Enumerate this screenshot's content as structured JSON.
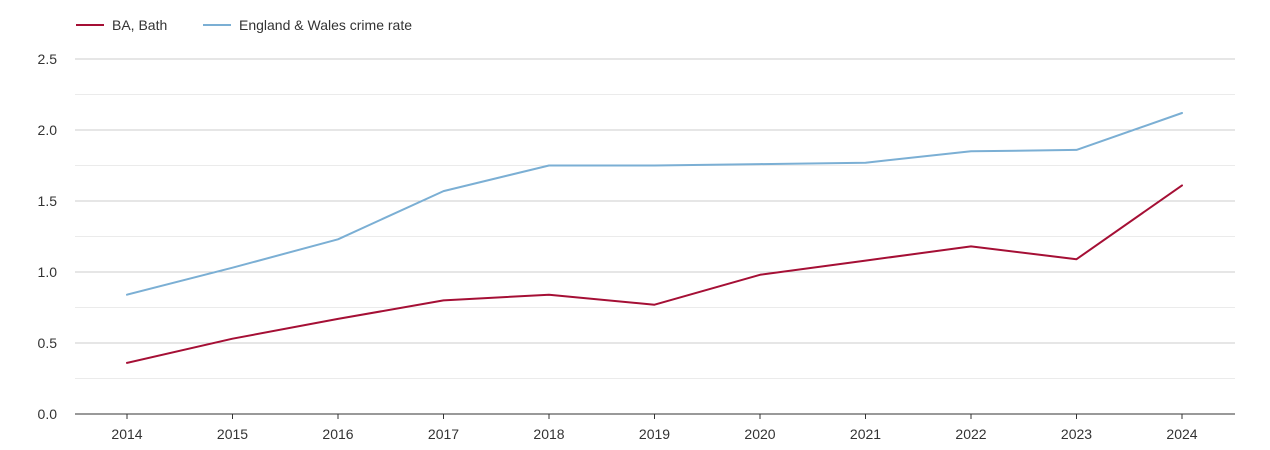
{
  "chart_data": {
    "type": "line",
    "title": "",
    "xlabel": "",
    "ylabel": "",
    "ylim": [
      0,
      2.5
    ],
    "yticks": [
      "0.0",
      "0.5",
      "1.0",
      "1.5",
      "2.0",
      "2.5"
    ],
    "ytick_values": [
      0,
      0.5,
      1.0,
      1.5,
      2.0,
      2.5
    ],
    "grid": true,
    "legend_position": "top-left",
    "categories": [
      "2014",
      "2015",
      "2016",
      "2017",
      "2018",
      "2019",
      "2020",
      "2021",
      "2022",
      "2023",
      "2024"
    ],
    "series": [
      {
        "name": "BA, Bath",
        "color": "#a50f35",
        "values": [
          0.36,
          0.53,
          0.67,
          0.8,
          0.84,
          0.77,
          0.98,
          1.08,
          1.18,
          1.09,
          1.61
        ]
      },
      {
        "name": "England & Wales crime rate",
        "color": "#7bafd4",
        "values": [
          0.84,
          1.03,
          1.23,
          1.57,
          1.75,
          1.75,
          1.76,
          1.77,
          1.85,
          1.86,
          2.12
        ]
      }
    ]
  }
}
